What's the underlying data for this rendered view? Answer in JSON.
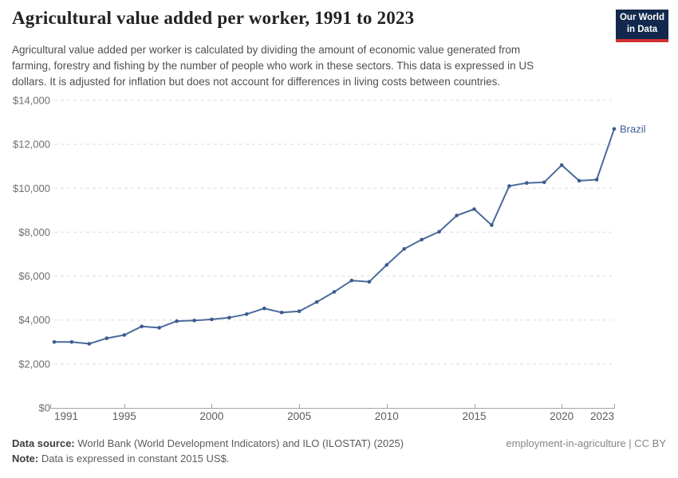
{
  "header": {
    "title": "Agricultural value added per worker, 1991 to 2023",
    "subtitle_lines": [
      "Agricultural value added per worker is calculated by dividing the amount of economic value generated from",
      "farming, forestry and fishing by the number of people who work in these sectors. This data is expressed in US",
      "dollars. It is adjusted for inflation but does not account for differences in living costs between countries."
    ],
    "logo": {
      "line1": "Our World",
      "line2": "in Data",
      "bg_color": "#12294d",
      "accent_color": "#d0312d"
    }
  },
  "chart_data": {
    "type": "line",
    "title": "Agricultural value added per worker, 1991 to 2023",
    "xlabel": "",
    "ylabel": "",
    "xlim": [
      1991,
      2023
    ],
    "ylim": [
      0,
      14000
    ],
    "grid": "horizontal-dashed",
    "legend_position": "end-of-line-label",
    "x_ticks": [
      1991,
      1995,
      2000,
      2005,
      2010,
      2015,
      2020,
      2023
    ],
    "y_ticks": [
      0,
      2000,
      4000,
      6000,
      8000,
      10000,
      12000,
      14000
    ],
    "y_tick_prefix": "$",
    "series": [
      {
        "name": "Brazil",
        "line_color": "#4c6a9c",
        "marker_color": "#3b5b8f",
        "label_color": "#3d5c94",
        "x": [
          1991,
          1992,
          1993,
          1994,
          1995,
          1996,
          1997,
          1998,
          1999,
          2000,
          2001,
          2002,
          2003,
          2004,
          2005,
          2006,
          2007,
          2008,
          2009,
          2010,
          2011,
          2012,
          2013,
          2014,
          2015,
          2016,
          2017,
          2018,
          2019,
          2020,
          2021,
          2022,
          2023
        ],
        "values": [
          3000,
          3000,
          2920,
          3170,
          3320,
          3710,
          3650,
          3950,
          3980,
          4030,
          4110,
          4270,
          4530,
          4340,
          4400,
          4820,
          5280,
          5800,
          5740,
          6510,
          7240,
          7660,
          8020,
          8760,
          9050,
          8320,
          10100,
          10240,
          10270,
          11050,
          10340,
          10390,
          12700
        ]
      }
    ],
    "colors": {
      "gridline": "#dcdcdc",
      "axis": "#a3a3a3",
      "tick_label": "#6e6e6e"
    }
  },
  "footer": {
    "source_label": "Data source:",
    "source_text": " World Bank (World Development Indicators) and ILO (ILOSTAT) (2025)",
    "note_label": "Note:",
    "note_text": " Data is expressed in constant 2015 US$.",
    "right_text": "employment-in-agriculture | CC BY"
  }
}
